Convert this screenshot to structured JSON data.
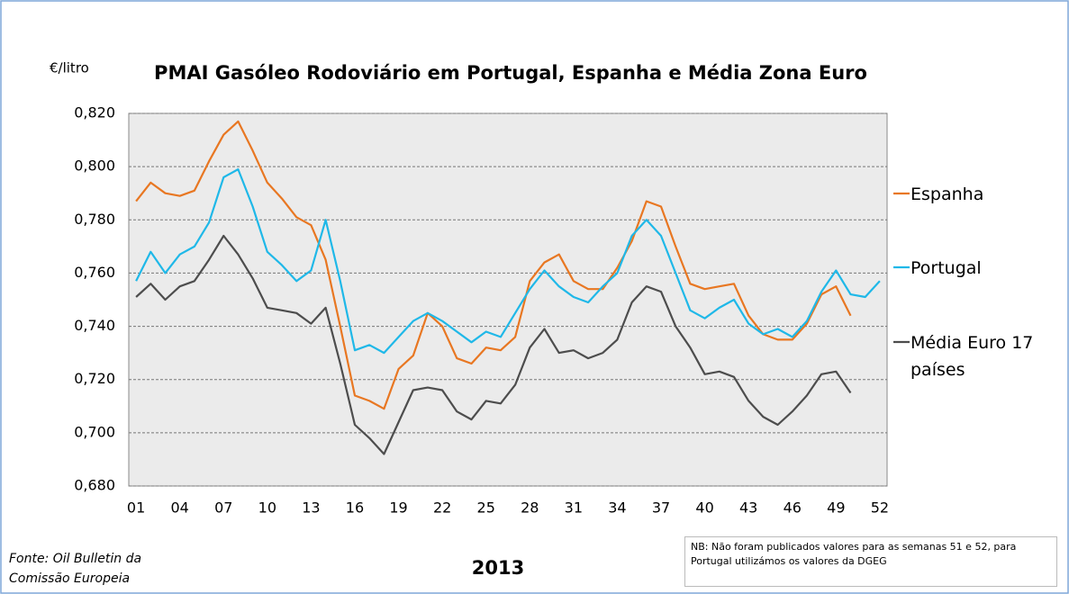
{
  "chart_data": {
    "type": "line",
    "title": "PMAI Gasóleo Rodoviário em Portugal, Espanha e Média Zona Euro",
    "y_label": "€/litro",
    "x_label": "2013",
    "source": "Fonte: Oil Bulletin da Comissão Europeia",
    "note": "NB: Não foram publicados valores para as semanas 51 e 52, para Portugal utilizámos os valores da DGEG",
    "categories": [
      "01",
      null,
      null,
      "04",
      null,
      null,
      "07",
      null,
      null,
      "10",
      null,
      null,
      "13",
      null,
      null,
      "16",
      null,
      null,
      "19",
      null,
      null,
      "22",
      null,
      null,
      "25",
      null,
      null,
      "28",
      null,
      null,
      "31",
      null,
      null,
      "34",
      null,
      null,
      "37",
      null,
      null,
      "40",
      null,
      null,
      "43",
      null,
      null,
      "46",
      null,
      null,
      "49",
      null,
      null,
      "52"
    ],
    "series": [
      {
        "name": "Espanha",
        "color": "#e87722",
        "values": [
          0.787,
          0.794,
          0.79,
          0.789,
          0.791,
          0.802,
          0.812,
          0.817,
          0.806,
          0.794,
          0.788,
          0.781,
          0.778,
          0.765,
          0.74,
          0.714,
          0.712,
          0.709,
          0.724,
          0.729,
          0.745,
          0.74,
          0.728,
          0.726,
          0.732,
          0.731,
          0.736,
          0.757,
          0.764,
          0.767,
          0.757,
          0.754,
          0.754,
          0.762,
          0.772,
          0.787,
          0.785,
          0.77,
          0.756,
          0.754,
          0.755,
          0.756,
          0.744,
          0.737,
          0.735,
          0.735,
          0.741,
          0.752,
          0.755,
          0.744,
          null,
          null
        ]
      },
      {
        "name": "Portugal",
        "color": "#1fb8e8",
        "values": [
          0.757,
          0.768,
          0.76,
          0.767,
          0.77,
          0.779,
          0.796,
          0.799,
          0.785,
          0.768,
          0.763,
          0.757,
          0.761,
          0.78,
          0.757,
          0.731,
          0.733,
          0.73,
          0.736,
          0.742,
          0.745,
          0.742,
          0.738,
          0.734,
          0.738,
          0.736,
          0.745,
          0.754,
          0.761,
          0.755,
          0.751,
          0.749,
          0.755,
          0.76,
          0.774,
          0.78,
          0.774,
          0.76,
          0.746,
          0.743,
          0.747,
          0.75,
          0.741,
          0.737,
          0.739,
          0.736,
          0.742,
          0.753,
          0.761,
          0.752,
          0.751,
          0.757
        ]
      },
      {
        "name": "Média Euro 17 países",
        "color": "#4d4d4d",
        "values": [
          0.751,
          0.756,
          0.75,
          0.755,
          0.757,
          0.765,
          0.774,
          0.767,
          0.758,
          0.747,
          0.746,
          0.745,
          0.741,
          0.747,
          0.726,
          0.703,
          0.698,
          0.692,
          0.704,
          0.716,
          0.717,
          0.716,
          0.708,
          0.705,
          0.712,
          0.711,
          0.718,
          0.732,
          0.739,
          0.73,
          0.731,
          0.728,
          0.73,
          0.735,
          0.749,
          0.755,
          0.753,
          0.74,
          0.732,
          0.722,
          0.723,
          0.721,
          0.712,
          0.706,
          0.703,
          0.708,
          0.714,
          0.722,
          0.723,
          0.715,
          null,
          null
        ]
      }
    ],
    "ylim": [
      0.68,
      0.82
    ],
    "yticks": [
      {
        "value": 0.68,
        "label": "0,680"
      },
      {
        "value": 0.7,
        "label": "0,700"
      },
      {
        "value": 0.72,
        "label": "0,720"
      },
      {
        "value": 0.74,
        "label": "0,740"
      },
      {
        "value": 0.76,
        "label": "0,760"
      },
      {
        "value": 0.78,
        "label": "0,780"
      },
      {
        "value": 0.8,
        "label": "0,800"
      },
      {
        "value": 0.82,
        "label": "0,820"
      }
    ],
    "grid": true,
    "legend": "right"
  }
}
